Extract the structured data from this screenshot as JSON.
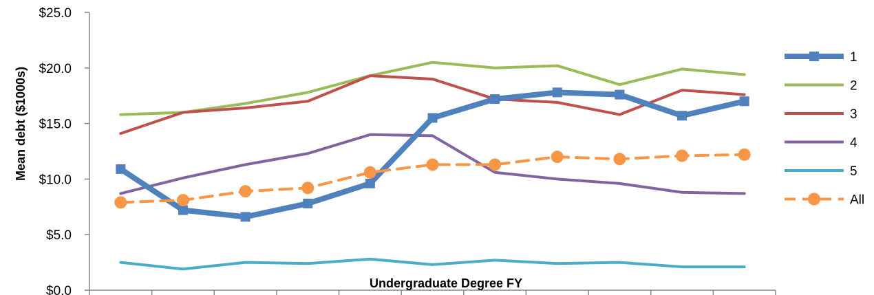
{
  "chart_data": {
    "type": "line",
    "xlabel": "Undergraduate Degree FY",
    "ylabel": "Mean debt ($1000s)",
    "ylim": [
      0,
      25
    ],
    "yticks": [
      0,
      5,
      10,
      15,
      20,
      25
    ],
    "ytick_labels": [
      "$0.0",
      "$5.0",
      "$10.0",
      "$15.0",
      "$20.0",
      "$25.0"
    ],
    "grid": false,
    "legend_position": "right",
    "n_categories": 11,
    "series": [
      {
        "name": "1",
        "color": "#4F81BD",
        "marker": "square",
        "dash": false,
        "width": 8,
        "values": [
          10.9,
          7.2,
          6.6,
          7.8,
          9.6,
          15.5,
          17.2,
          17.8,
          17.6,
          15.7,
          17.0
        ]
      },
      {
        "name": "2",
        "color": "#9BBB59",
        "marker": "none",
        "dash": false,
        "width": 4,
        "values": [
          15.8,
          16.0,
          16.8,
          17.8,
          19.3,
          20.5,
          20.0,
          20.2,
          18.5,
          19.9,
          19.4
        ]
      },
      {
        "name": "3",
        "color": "#C0504D",
        "marker": "none",
        "dash": false,
        "width": 4,
        "values": [
          14.1,
          16.0,
          16.4,
          17.0,
          19.3,
          19.0,
          17.2,
          16.9,
          15.8,
          18.0,
          17.6
        ]
      },
      {
        "name": "4",
        "color": "#8064A2",
        "marker": "none",
        "dash": false,
        "width": 4,
        "values": [
          8.7,
          10.1,
          11.3,
          12.3,
          14.0,
          13.9,
          10.6,
          10.0,
          9.6,
          8.8,
          8.7
        ]
      },
      {
        "name": "5",
        "color": "#4BACC6",
        "marker": "none",
        "dash": false,
        "width": 4,
        "values": [
          2.5,
          1.9,
          2.5,
          2.4,
          2.8,
          2.3,
          2.7,
          2.4,
          2.5,
          2.1,
          2.1
        ]
      },
      {
        "name": "All",
        "color": "#F79646",
        "marker": "circle",
        "dash": true,
        "width": 4,
        "values": [
          7.9,
          8.1,
          8.9,
          9.2,
          10.6,
          11.3,
          11.3,
          12.0,
          11.8,
          12.1,
          12.2
        ]
      }
    ]
  }
}
